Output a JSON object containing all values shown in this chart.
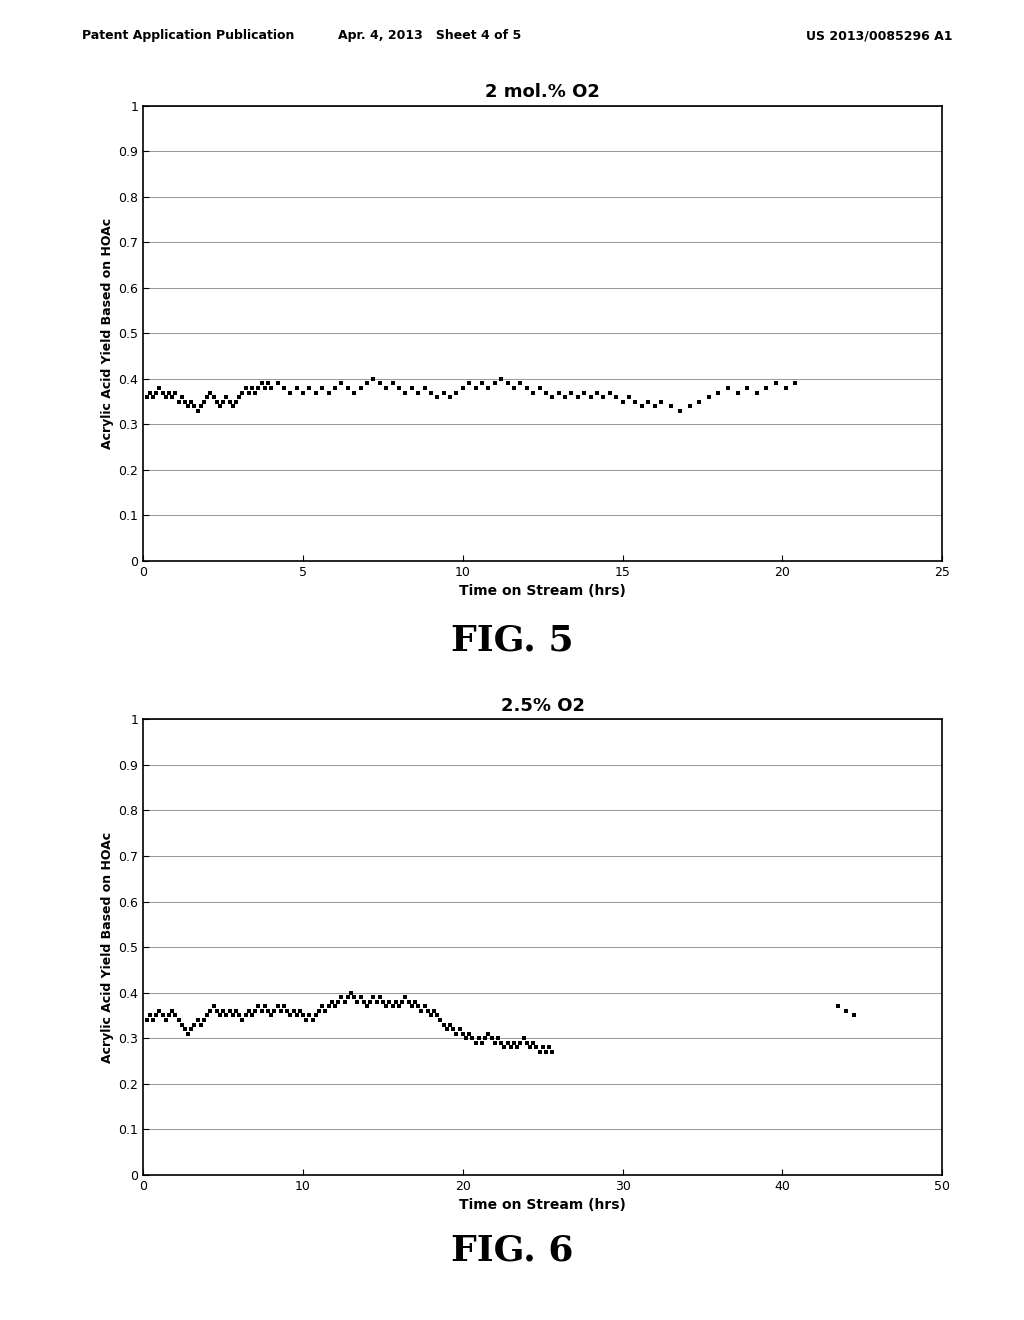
{
  "header_left": "Patent Application Publication",
  "header_center": "Apr. 4, 2013   Sheet 4 of 5",
  "header_right": "US 2013/0085296 A1",
  "fig5": {
    "title": "2 mol.% O2",
    "xlabel": "Time on Stream (hrs)",
    "ylabel": "Acrylic Acid Yield Based on HOAc",
    "xlim": [
      0,
      25
    ],
    "ylim": [
      0,
      1
    ],
    "xticks": [
      0,
      5,
      10,
      15,
      20,
      25
    ],
    "yticks": [
      0,
      0.1,
      0.2,
      0.3,
      0.4,
      0.5,
      0.6,
      0.7,
      0.8,
      0.9,
      1
    ],
    "figname": "FIG. 5",
    "data_x": [
      0.1,
      0.2,
      0.3,
      0.4,
      0.5,
      0.6,
      0.7,
      0.8,
      0.9,
      1.0,
      1.1,
      1.2,
      1.3,
      1.4,
      1.5,
      1.6,
      1.7,
      1.8,
      1.9,
      2.0,
      2.1,
      2.2,
      2.3,
      2.4,
      2.5,
      2.6,
      2.7,
      2.8,
      2.9,
      3.0,
      3.1,
      3.2,
      3.3,
      3.4,
      3.5,
      3.6,
      3.7,
      3.8,
      3.9,
      4.0,
      4.2,
      4.4,
      4.6,
      4.8,
      5.0,
      5.2,
      5.4,
      5.6,
      5.8,
      6.0,
      6.2,
      6.4,
      6.6,
      6.8,
      7.0,
      7.2,
      7.4,
      7.6,
      7.8,
      8.0,
      8.2,
      8.4,
      8.6,
      8.8,
      9.0,
      9.2,
      9.4,
      9.6,
      9.8,
      10.0,
      10.2,
      10.4,
      10.6,
      10.8,
      11.0,
      11.2,
      11.4,
      11.6,
      11.8,
      12.0,
      12.2,
      12.4,
      12.6,
      12.8,
      13.0,
      13.2,
      13.4,
      13.6,
      13.8,
      14.0,
      14.2,
      14.4,
      14.6,
      14.8,
      15.0,
      15.2,
      15.4,
      15.6,
      15.8,
      16.0,
      16.2,
      16.5,
      16.8,
      17.1,
      17.4,
      17.7,
      18.0,
      18.3,
      18.6,
      18.9,
      19.2,
      19.5,
      19.8,
      20.1,
      20.4
    ],
    "data_y": [
      0.36,
      0.37,
      0.36,
      0.37,
      0.38,
      0.37,
      0.36,
      0.37,
      0.36,
      0.37,
      0.35,
      0.36,
      0.35,
      0.34,
      0.35,
      0.34,
      0.33,
      0.34,
      0.35,
      0.36,
      0.37,
      0.36,
      0.35,
      0.34,
      0.35,
      0.36,
      0.35,
      0.34,
      0.35,
      0.36,
      0.37,
      0.38,
      0.37,
      0.38,
      0.37,
      0.38,
      0.39,
      0.38,
      0.39,
      0.38,
      0.39,
      0.38,
      0.37,
      0.38,
      0.37,
      0.38,
      0.37,
      0.38,
      0.37,
      0.38,
      0.39,
      0.38,
      0.37,
      0.38,
      0.39,
      0.4,
      0.39,
      0.38,
      0.39,
      0.38,
      0.37,
      0.38,
      0.37,
      0.38,
      0.37,
      0.36,
      0.37,
      0.36,
      0.37,
      0.38,
      0.39,
      0.38,
      0.39,
      0.38,
      0.39,
      0.4,
      0.39,
      0.38,
      0.39,
      0.38,
      0.37,
      0.38,
      0.37,
      0.36,
      0.37,
      0.36,
      0.37,
      0.36,
      0.37,
      0.36,
      0.37,
      0.36,
      0.37,
      0.36,
      0.35,
      0.36,
      0.35,
      0.34,
      0.35,
      0.34,
      0.35,
      0.34,
      0.33,
      0.34,
      0.35,
      0.36,
      0.37,
      0.38,
      0.37,
      0.38,
      0.37,
      0.38,
      0.39,
      0.38,
      0.39
    ]
  },
  "fig6": {
    "title": "2.5% O2",
    "xlabel": "Time on Stream (hrs)",
    "ylabel": "Acrylic Acid Yield Based on HOAc",
    "xlim": [
      0,
      50
    ],
    "ylim": [
      0,
      1
    ],
    "xticks": [
      0,
      10,
      20,
      30,
      40,
      50
    ],
    "yticks": [
      0,
      0.1,
      0.2,
      0.3,
      0.4,
      0.5,
      0.6,
      0.7,
      0.8,
      0.9,
      1
    ],
    "figname": "FIG. 6",
    "data_x": [
      0.2,
      0.4,
      0.6,
      0.8,
      1.0,
      1.2,
      1.4,
      1.6,
      1.8,
      2.0,
      2.2,
      2.4,
      2.6,
      2.8,
      3.0,
      3.2,
      3.4,
      3.6,
      3.8,
      4.0,
      4.2,
      4.4,
      4.6,
      4.8,
      5.0,
      5.2,
      5.4,
      5.6,
      5.8,
      6.0,
      6.2,
      6.4,
      6.6,
      6.8,
      7.0,
      7.2,
      7.4,
      7.6,
      7.8,
      8.0,
      8.2,
      8.4,
      8.6,
      8.8,
      9.0,
      9.2,
      9.4,
      9.6,
      9.8,
      10.0,
      10.2,
      10.4,
      10.6,
      10.8,
      11.0,
      11.2,
      11.4,
      11.6,
      11.8,
      12.0,
      12.2,
      12.4,
      12.6,
      12.8,
      13.0,
      13.2,
      13.4,
      13.6,
      13.8,
      14.0,
      14.2,
      14.4,
      14.6,
      14.8,
      15.0,
      15.2,
      15.4,
      15.6,
      15.8,
      16.0,
      16.2,
      16.4,
      16.6,
      16.8,
      17.0,
      17.2,
      17.4,
      17.6,
      17.8,
      18.0,
      18.2,
      18.4,
      18.6,
      18.8,
      19.0,
      19.2,
      19.4,
      19.6,
      19.8,
      20.0,
      20.2,
      20.4,
      20.6,
      20.8,
      21.0,
      21.2,
      21.4,
      21.6,
      21.8,
      22.0,
      22.2,
      22.4,
      22.6,
      22.8,
      23.0,
      23.2,
      23.4,
      23.6,
      23.8,
      24.0,
      24.2,
      24.4,
      24.6,
      24.8,
      25.0,
      25.2,
      25.4,
      25.6,
      43.5,
      44.0,
      44.5
    ],
    "data_y": [
      0.34,
      0.35,
      0.34,
      0.35,
      0.36,
      0.35,
      0.34,
      0.35,
      0.36,
      0.35,
      0.34,
      0.33,
      0.32,
      0.31,
      0.32,
      0.33,
      0.34,
      0.33,
      0.34,
      0.35,
      0.36,
      0.37,
      0.36,
      0.35,
      0.36,
      0.35,
      0.36,
      0.35,
      0.36,
      0.35,
      0.34,
      0.35,
      0.36,
      0.35,
      0.36,
      0.37,
      0.36,
      0.37,
      0.36,
      0.35,
      0.36,
      0.37,
      0.36,
      0.37,
      0.36,
      0.35,
      0.36,
      0.35,
      0.36,
      0.35,
      0.34,
      0.35,
      0.34,
      0.35,
      0.36,
      0.37,
      0.36,
      0.37,
      0.38,
      0.37,
      0.38,
      0.39,
      0.38,
      0.39,
      0.4,
      0.39,
      0.38,
      0.39,
      0.38,
      0.37,
      0.38,
      0.39,
      0.38,
      0.39,
      0.38,
      0.37,
      0.38,
      0.37,
      0.38,
      0.37,
      0.38,
      0.39,
      0.38,
      0.37,
      0.38,
      0.37,
      0.36,
      0.37,
      0.36,
      0.35,
      0.36,
      0.35,
      0.34,
      0.33,
      0.32,
      0.33,
      0.32,
      0.31,
      0.32,
      0.31,
      0.3,
      0.31,
      0.3,
      0.29,
      0.3,
      0.29,
      0.3,
      0.31,
      0.3,
      0.29,
      0.3,
      0.29,
      0.28,
      0.29,
      0.28,
      0.29,
      0.28,
      0.29,
      0.3,
      0.29,
      0.28,
      0.29,
      0.28,
      0.27,
      0.28,
      0.27,
      0.28,
      0.27,
      0.37,
      0.36,
      0.35
    ]
  }
}
